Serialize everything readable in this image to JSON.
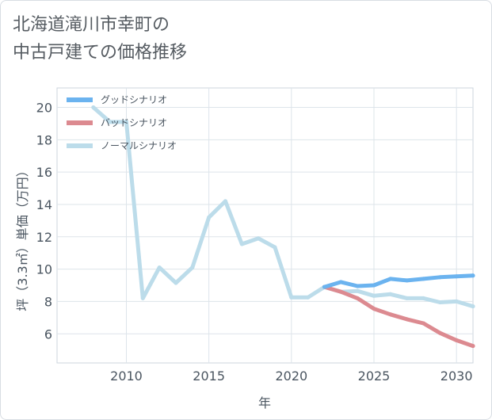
{
  "title_lines": [
    "北海道滝川市幸町の",
    "中古戸建ての価格推移"
  ],
  "chart_data": {
    "type": "line",
    "xlabel": "年",
    "ylabel": "坪（3.3㎡）単価（万円）",
    "xlim": [
      2005.8,
      2031
    ],
    "ylim": [
      4.2,
      21.2
    ],
    "x_ticks": [
      2010,
      2015,
      2020,
      2025,
      2030
    ],
    "y_ticks": [
      6,
      8,
      10,
      12,
      14,
      16,
      18,
      20
    ],
    "grid": true,
    "legend_position": "top-left",
    "series": [
      {
        "name": "グッドシナリオ",
        "color": "#6bb3ef",
        "x": [
          2022,
          2023,
          2024,
          2025,
          2026,
          2027,
          2028,
          2029,
          2030,
          2031
        ],
        "y": [
          8.9,
          9.2,
          8.95,
          9.0,
          9.4,
          9.3,
          9.4,
          9.5,
          9.55,
          9.6
        ]
      },
      {
        "name": "バッドシナリオ",
        "color": "#dc8a90",
        "x": [
          2022,
          2023,
          2024,
          2025,
          2026,
          2027,
          2028,
          2029,
          2030,
          2031
        ],
        "y": [
          8.9,
          8.6,
          8.2,
          7.55,
          7.2,
          6.9,
          6.65,
          6.05,
          5.6,
          5.25
        ]
      },
      {
        "name": "ノーマルシナリオ",
        "color": "#bcdcea",
        "x": [
          2008,
          2009,
          2010,
          2011,
          2012,
          2013,
          2014,
          2015,
          2016,
          2017,
          2018,
          2019,
          2020,
          2021,
          2022,
          2023,
          2024,
          2025,
          2026,
          2027,
          2028,
          2029,
          2030,
          2031
        ],
        "y": [
          20.0,
          19.1,
          19.1,
          8.2,
          10.1,
          9.15,
          10.1,
          13.2,
          14.2,
          11.55,
          11.9,
          11.35,
          8.25,
          8.25,
          8.9,
          8.6,
          8.65,
          8.35,
          8.45,
          8.2,
          8.2,
          7.95,
          8.0,
          7.7
        ]
      }
    ]
  }
}
